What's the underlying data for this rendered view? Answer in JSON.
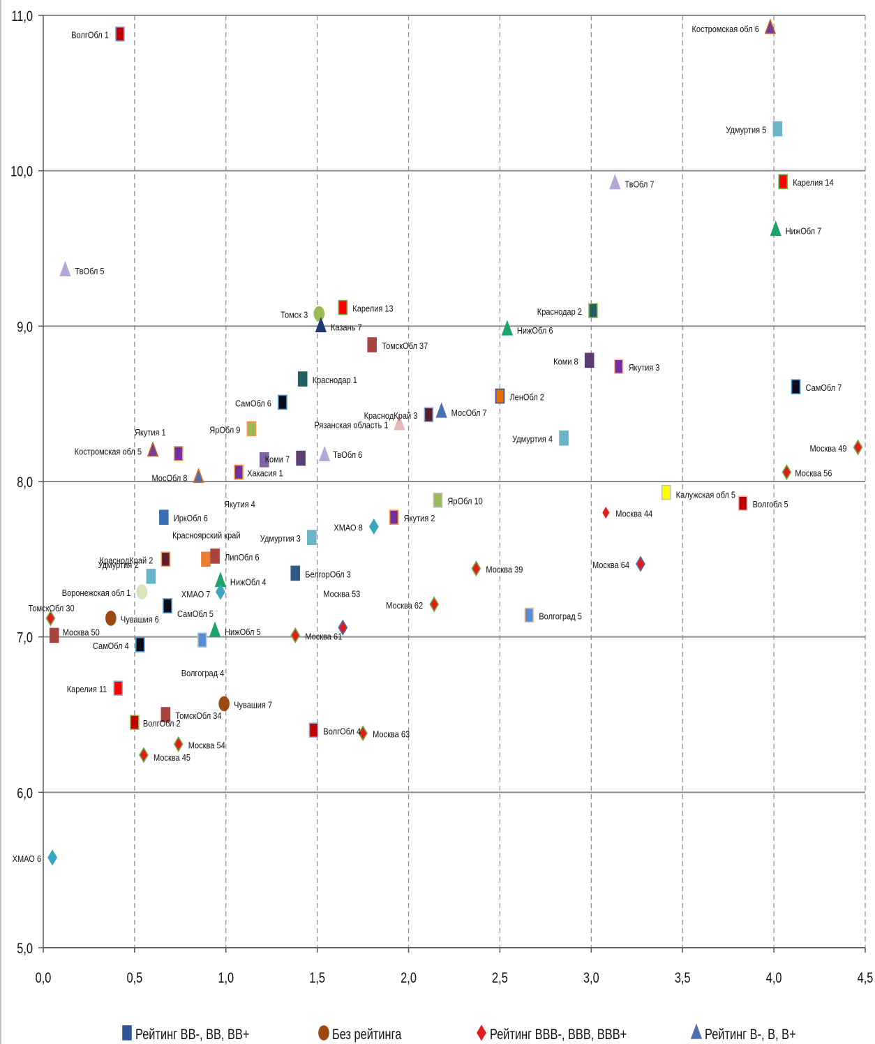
{
  "chart_data": {
    "type": "scatter",
    "title": "",
    "xlabel": "",
    "ylabel": "",
    "xlim": [
      0,
      4.5
    ],
    "ylim": [
      5,
      11
    ],
    "x_ticks": [
      "0,0",
      "0,5",
      "1,0",
      "1,5",
      "2,0",
      "2,5",
      "3,0",
      "3,5",
      "4,0",
      "4,5"
    ],
    "y_ticks": [
      "5,0",
      "6,0",
      "7,0",
      "8,0",
      "9,0",
      "10,0",
      "11,0"
    ],
    "grid": {
      "horizontal": "solid",
      "vertical": "dashed"
    },
    "legend_position": "bottom",
    "legend": [
      {
        "name": "Рейтинг BB-, BB, BB+",
        "marker": "square",
        "color": "#2f5597"
      },
      {
        "name": "Без рейтинга",
        "marker": "circle",
        "color": "#9c4a12"
      },
      {
        "name": "Рейтинг BBB-, BBB, BBB+",
        "marker": "diamond",
        "color": "#e31b1b"
      },
      {
        "name": "Рейтинг B-, B, B+",
        "marker": "triangle",
        "color": "#4a6fb5"
      }
    ],
    "points": [
      {
        "label": "ВолгОбл 1",
        "x": 0.42,
        "y": 10.88,
        "marker": "square",
        "color": "#c00000",
        "border": "#8faadc"
      },
      {
        "label": "Костромская обл 6",
        "x": 3.98,
        "y": 10.92,
        "marker": "triangle",
        "color": "#6b3fa0",
        "border": "#c55a11"
      },
      {
        "label": "Удмуртия 5",
        "x": 4.02,
        "y": 10.27,
        "marker": "square",
        "color": "#6ab4c8",
        "border": "#6ab4c8"
      },
      {
        "label": "ТвОбл 7",
        "x": 3.13,
        "y": 9.92,
        "marker": "triangle",
        "color": "#b4a7d6",
        "border": "#b4a7d6"
      },
      {
        "label": "Карелия 14",
        "x": 4.05,
        "y": 9.93,
        "marker": "square",
        "color": "#ff0000",
        "border": "#70ad47"
      },
      {
        "label": "НижОбл 7",
        "x": 4.01,
        "y": 9.62,
        "marker": "triangle",
        "color": "#1aa36a",
        "border": "#1aa36a"
      },
      {
        "label": "ТвОбл 5",
        "x": 0.12,
        "y": 9.36,
        "marker": "triangle",
        "color": "#b4a7d6",
        "border": "#b4a7d6"
      },
      {
        "label": "Томск 3",
        "x": 1.51,
        "y": 9.08,
        "marker": "circle",
        "color": "#9bbb59",
        "border": "#9bbb59"
      },
      {
        "label": "Карелия 13",
        "x": 1.64,
        "y": 9.12,
        "marker": "square",
        "color": "#ff0000",
        "border": "#70ad47"
      },
      {
        "label": "Казань 7",
        "x": 1.52,
        "y": 9.0,
        "marker": "triangle",
        "color": "#1f3a6e",
        "border": "#1f3a6e"
      },
      {
        "label": "Краснодар 2",
        "x": 3.01,
        "y": 9.1,
        "marker": "square",
        "color": "#215f62",
        "border": "#9bbb59"
      },
      {
        "label": "НижОбл 6",
        "x": 2.54,
        "y": 8.98,
        "marker": "triangle",
        "color": "#1aa36a",
        "border": "#1aa36a"
      },
      {
        "label": "ТомскОбл 37",
        "x": 1.8,
        "y": 8.88,
        "marker": "square",
        "color": "#a9443f",
        "border": "#a9443f"
      },
      {
        "label": "Коми 8",
        "x": 2.99,
        "y": 8.78,
        "marker": "square",
        "color": "#5b3f73",
        "border": "#5b3f73"
      },
      {
        "label": "Якутия 3",
        "x": 3.15,
        "y": 8.74,
        "marker": "square",
        "color": "#7030a0",
        "border": "#ffbf9b"
      },
      {
        "label": "Краснодар 1",
        "x": 1.42,
        "y": 8.66,
        "marker": "square",
        "color": "#215f62",
        "border": "#215f62"
      },
      {
        "label": "СамОбл 7",
        "x": 4.12,
        "y": 8.61,
        "marker": "square",
        "color": "#0b0b1a",
        "border": "#4a90c8"
      },
      {
        "label": "ЛенОбл 2",
        "x": 2.5,
        "y": 8.55,
        "marker": "square",
        "color": "#e36c09",
        "border": "#2f5597"
      },
      {
        "label": "СамОбл 6",
        "x": 1.31,
        "y": 8.51,
        "marker": "square",
        "color": "#0b0b1a",
        "border": "#4a90c8"
      },
      {
        "label": "КраснодКрай 3",
        "x": 2.11,
        "y": 8.43,
        "marker": "square",
        "color": "#5a1f2a",
        "border": "#8faadc"
      },
      {
        "label": "МосОбл 7",
        "x": 2.18,
        "y": 8.45,
        "marker": "triangle",
        "color": "#4a6fb5",
        "border": "#4a6fb5"
      },
      {
        "label": "Рязанская область 1",
        "x": 1.95,
        "y": 8.37,
        "marker": "triangle",
        "color": "#e6b8b7",
        "border": "#e6b8b7"
      },
      {
        "label": "ЯрОбл 9",
        "x": 1.14,
        "y": 8.34,
        "marker": "square",
        "color": "#9bbb59",
        "border": "#f79646"
      },
      {
        "label": "Коми 7",
        "x": 1.41,
        "y": 8.15,
        "marker": "square",
        "color": "#5b3f73",
        "border": "#5b3f73"
      },
      {
        "label": "Удмуртия 4",
        "x": 2.85,
        "y": 8.28,
        "marker": "square",
        "color": "#6ab4c8",
        "border": "#6ab4c8"
      },
      {
        "label": "Якутия 1",
        "x": 0.74,
        "y": 8.18,
        "marker": "square",
        "color": "#7030a0",
        "border": "#f79646"
      },
      {
        "label": "Костромская обл 5",
        "x": 0.6,
        "y": 8.2,
        "marker": "triangle",
        "color": "#6b3fa0",
        "border": "#c55a11"
      },
      {
        "label": "ТвОбл 6",
        "x": 1.54,
        "y": 8.17,
        "marker": "triangle",
        "color": "#b4a7d6",
        "border": "#b4a7d6"
      },
      {
        "label": "Москва 49",
        "x": 4.46,
        "y": 8.22,
        "marker": "diamond",
        "color": "#e31b1b",
        "border": "#70ad47"
      },
      {
        "label": "МосОбл 8",
        "x": 0.85,
        "y": 8.03,
        "marker": "triangle",
        "color": "#4a6fb5",
        "border": "#e36c09"
      },
      {
        "label": "Хакасия 1",
        "x": 1.07,
        "y": 8.06,
        "marker": "square",
        "color": "#7030a0",
        "border": "#f79646"
      },
      {
        "label": "Хакасия 1",
        "x": 1.21,
        "y": 8.14,
        "marker": "square",
        "color": "#8064a2",
        "border": "#8064a2"
      },
      {
        "label": "Москва 56",
        "x": 4.07,
        "y": 8.06,
        "marker": "diamond",
        "color": "#e31b1b",
        "border": "#70ad47"
      },
      {
        "label": "Калужская обл 5",
        "x": 3.41,
        "y": 7.93,
        "marker": "square",
        "color": "#ffff00",
        "border": "#c0c0c0"
      },
      {
        "label": "ЯрОбл 10",
        "x": 2.16,
        "y": 7.88,
        "marker": "square",
        "color": "#9bbb59",
        "border": "#c0c0c0"
      },
      {
        "label": "Волгобл 5",
        "x": 3.83,
        "y": 7.86,
        "marker": "square",
        "color": "#c00000",
        "border": "#e6b8b7"
      },
      {
        "label": "Москва 44",
        "x": 3.08,
        "y": 7.8,
        "marker": "diamond",
        "color": "#e31b1b",
        "border": "#ffffff"
      },
      {
        "label": "ИркОбл 6",
        "x": 0.66,
        "y": 7.77,
        "marker": "square",
        "color": "#3a6fb0",
        "border": "#3a6fb0"
      },
      {
        "label": "Якутия 2",
        "x": 1.92,
        "y": 7.77,
        "marker": "square",
        "color": "#7030a0",
        "border": "#f79646"
      },
      {
        "label": "ХМАО 8",
        "x": 1.81,
        "y": 7.71,
        "marker": "diamond",
        "color": "#3aa5c0",
        "border": "#3aa5c0"
      },
      {
        "label": "Удмуртия 3",
        "x": 1.47,
        "y": 7.64,
        "marker": "square",
        "color": "#6ab4c8",
        "border": "#6ab4c8"
      },
      {
        "label": "КраснодКрай 2",
        "x": 0.67,
        "y": 7.5,
        "marker": "square",
        "color": "#5a1f2a",
        "border": "#f79646"
      },
      {
        "label": "Красноярский край",
        "x": 0.89,
        "y": 7.5,
        "marker": "square",
        "color": "#ed7d31",
        "border": "#ed7d31"
      },
      {
        "label": "ЛипОбл 6",
        "x": 0.94,
        "y": 7.52,
        "marker": "square",
        "color": "#a9443f",
        "border": "#a9443f"
      },
      {
        "label": "Москва 64",
        "x": 3.27,
        "y": 7.47,
        "marker": "diamond",
        "color": "#e31b1b",
        "border": "#4a6fb5"
      },
      {
        "label": "Москва 39",
        "x": 2.37,
        "y": 7.44,
        "marker": "diamond",
        "color": "#e31b1b",
        "border": "#70ad47"
      },
      {
        "label": "БелгорОбл 3",
        "x": 1.38,
        "y": 7.41,
        "marker": "square",
        "color": "#2e5a88",
        "border": "#2e5a88"
      },
      {
        "label": "Удмуртия 2",
        "x": 0.59,
        "y": 7.39,
        "marker": "square",
        "color": "#6ab4c8",
        "border": "#6ab4c8"
      },
      {
        "label": "НижОбл 4",
        "x": 0.97,
        "y": 7.36,
        "marker": "triangle",
        "color": "#1aa36a",
        "border": "#1aa36a"
      },
      {
        "label": "ХМАО 7",
        "x": 0.97,
        "y": 7.29,
        "marker": "diamond",
        "color": "#3aa5c0",
        "border": "#3aa5c0"
      },
      {
        "label": "Воронежская обл 1",
        "x": 0.54,
        "y": 7.29,
        "marker": "circle",
        "color": "#d8e4bc",
        "border": "#d8e4bc"
      },
      {
        "label": "Москва 62",
        "x": 2.14,
        "y": 7.21,
        "marker": "diamond",
        "color": "#e31b1b",
        "border": "#70ad47"
      },
      {
        "label": "СамОбл 5",
        "x": 0.68,
        "y": 7.2,
        "marker": "square",
        "color": "#0b0b1a",
        "border": "#4a90c8"
      },
      {
        "label": "Волгоград 5",
        "x": 2.66,
        "y": 7.14,
        "marker": "square",
        "color": "#558ed5",
        "border": "#ffbf9b"
      },
      {
        "label": "ТомскОбл 30",
        "x": 0.04,
        "y": 7.12,
        "marker": "diamond",
        "color": "#e31b1b",
        "border": "#70ad47"
      },
      {
        "label": "Чувашия 6",
        "x": 0.37,
        "y": 7.12,
        "marker": "circle",
        "color": "#9c4a12",
        "border": "#9c4a12"
      },
      {
        "label": "Москва 53",
        "x": 1.64,
        "y": 7.06,
        "marker": "diamond",
        "color": "#e31b1b",
        "border": "#4a6fb5"
      },
      {
        "label": "НижОбл 5",
        "x": 0.94,
        "y": 7.04,
        "marker": "triangle",
        "color": "#1aa36a",
        "border": "#1aa36a"
      },
      {
        "label": "Москва 50",
        "x": 0.06,
        "y": 7.01,
        "marker": "square",
        "color": "#a9443f",
        "border": "#a9443f"
      },
      {
        "label": "Москва 61",
        "x": 1.38,
        "y": 7.01,
        "marker": "diamond",
        "color": "#e31b1b",
        "border": "#70ad47"
      },
      {
        "label": "Волгоград 4",
        "x": 0.87,
        "y": 6.98,
        "marker": "square",
        "color": "#558ed5",
        "border": "#c0c0c0"
      },
      {
        "label": "СамОбл 4",
        "x": 0.53,
        "y": 6.95,
        "marker": "square",
        "color": "#0b0b1a",
        "border": "#4a90c8"
      },
      {
        "label": "Карелия 11",
        "x": 0.41,
        "y": 6.67,
        "marker": "square",
        "color": "#ff0000",
        "border": "#8faadc"
      },
      {
        "label": "Чувашия 7",
        "x": 0.99,
        "y": 6.57,
        "marker": "circle",
        "color": "#9c4a12",
        "border": "#9c4a12"
      },
      {
        "label": "ТомскОбл 34",
        "x": 0.67,
        "y": 6.5,
        "marker": "square",
        "color": "#a9443f",
        "border": "#a9443f"
      },
      {
        "label": "ВолгОбл 2",
        "x": 0.5,
        "y": 6.45,
        "marker": "square",
        "color": "#c00000",
        "border": "#9bbb59"
      },
      {
        "label": "ВолгОбл 4",
        "x": 1.48,
        "y": 6.4,
        "marker": "square",
        "color": "#c00000",
        "border": "#8faadc"
      },
      {
        "label": "Москва 63",
        "x": 1.75,
        "y": 6.38,
        "marker": "diamond",
        "color": "#e31b1b",
        "border": "#70ad47"
      },
      {
        "label": "Москва 54",
        "x": 0.74,
        "y": 6.31,
        "marker": "diamond",
        "color": "#e31b1b",
        "border": "#70ad47"
      },
      {
        "label": "Москва 45",
        "x": 0.55,
        "y": 6.24,
        "marker": "diamond",
        "color": "#e31b1b",
        "border": "#70ad47"
      },
      {
        "label": "ХМАО 6",
        "x": 0.05,
        "y": 5.58,
        "marker": "diamond",
        "color": "#3aa5c0",
        "border": "#3aa5c0"
      }
    ]
  }
}
